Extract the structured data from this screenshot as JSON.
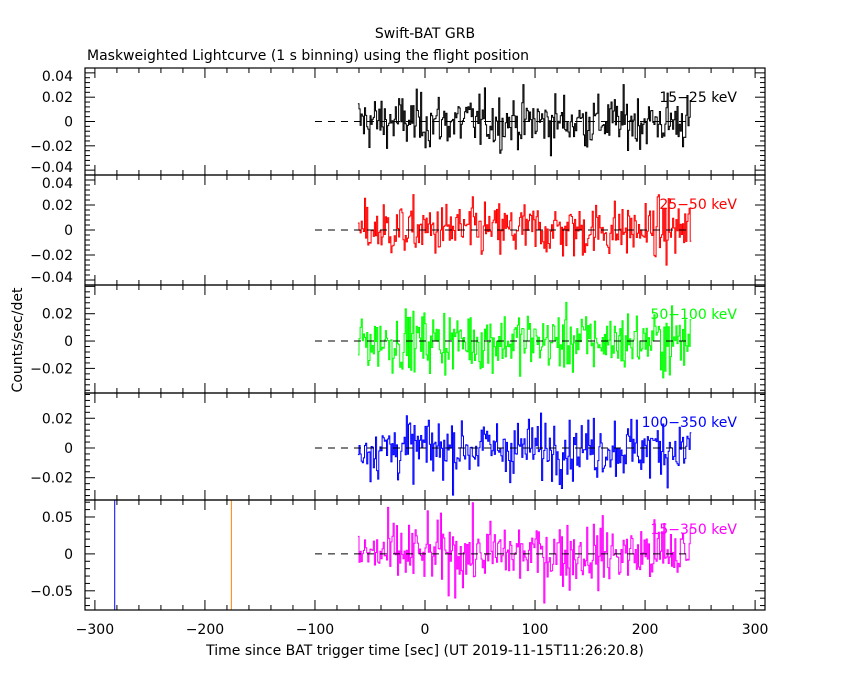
{
  "chart_data": {
    "type": "line",
    "title": "Swift-BAT GRB",
    "subtitle": "Maskweighted Lightcurve (1 s binning) using the flight position",
    "xlabel": "Time since BAT trigger time [sec] (UT 2019-11-15T11:26:20.8)",
    "ylabel": "Counts/sec/det",
    "xlim": [
      -309,
      309
    ],
    "x_ticks": [
      -300,
      -200,
      -100,
      0,
      100,
      200,
      300
    ],
    "x_tick_labels": [
      "−300",
      "−200",
      "−100",
      "0",
      "100",
      "200",
      "300"
    ],
    "data_x_range": [
      -61,
      241
    ],
    "binning_sec": 1,
    "zero_line_x_range": [
      -100,
      241
    ],
    "panels": [
      {
        "name": "15-25 keV",
        "label": "15−25 keV",
        "color": "#000000",
        "ylim": [
          -0.044,
          0.044
        ],
        "y_ticks": [
          0.04,
          0.02,
          0,
          -0.02,
          -0.04
        ],
        "y_tick_labels": [
          "0.04",
          "0.02",
          "0",
          "−0.02",
          "−0.04"
        ],
        "noise_sigma": 0.011
      },
      {
        "name": "25-50 keV",
        "label": "25−50 keV",
        "color": "#ff0000",
        "ylim": [
          -0.044,
          0.044
        ],
        "y_ticks": [
          0.04,
          0.02,
          0,
          -0.02,
          -0.04
        ],
        "y_tick_labels": [
          "0.04",
          "0.02",
          "0",
          "−0.02",
          "−0.04"
        ],
        "noise_sigma": 0.011
      },
      {
        "name": "50-100 keV",
        "label": "50−100 keV",
        "color": "#00ff00",
        "ylim": [
          -0.038,
          0.041
        ],
        "y_ticks": [
          0.02,
          0,
          -0.02
        ],
        "y_tick_labels": [
          "0.02",
          "0",
          "−0.02"
        ],
        "noise_sigma": 0.011
      },
      {
        "name": "100-350 keV",
        "label": "100−350 keV",
        "color": "#0000ff",
        "ylim": [
          -0.035,
          0.037
        ],
        "y_ticks": [
          0.02,
          0,
          -0.02
        ],
        "y_tick_labels": [
          "0.02",
          "0",
          "−0.02"
        ],
        "noise_sigma": 0.01
      },
      {
        "name": "15-350 keV",
        "label": "15−350 keV",
        "color": "#ff00ff",
        "ylim": [
          -0.076,
          0.073
        ],
        "y_ticks": [
          0.05,
          0,
          -0.05
        ],
        "y_tick_labels": [
          "0.05",
          "0",
          "−0.05"
        ],
        "noise_sigma": 0.022,
        "vertical_lines": [
          {
            "x": -282,
            "color": "#0000ff"
          },
          {
            "x": -176,
            "color": "#ff8000"
          }
        ]
      }
    ]
  }
}
